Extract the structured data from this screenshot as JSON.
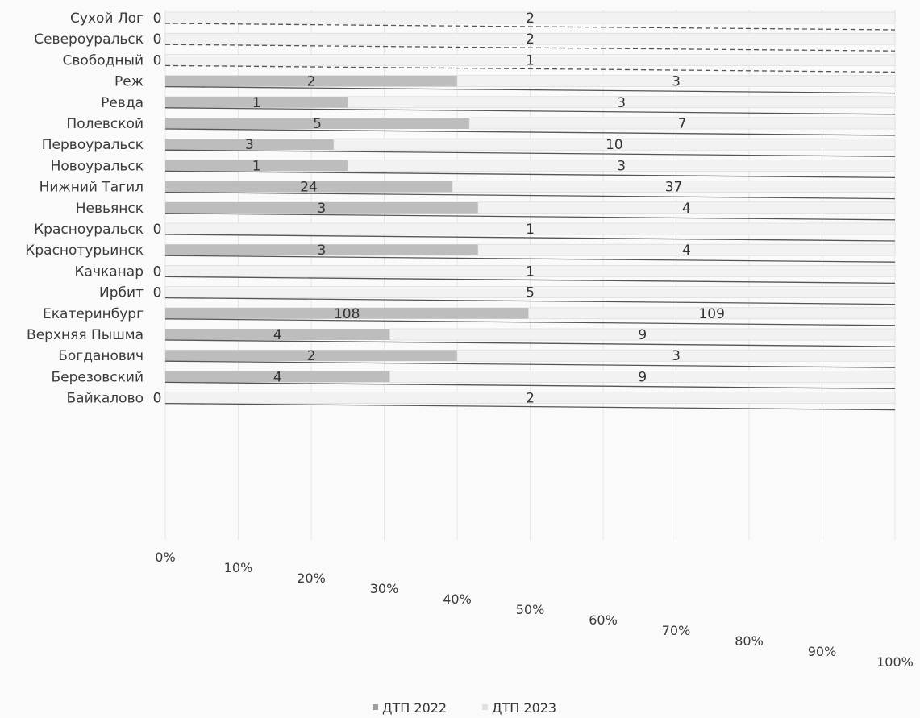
{
  "chart_data": {
    "type": "bar",
    "orientation": "horizontal",
    "stacking": "percent",
    "categories": [
      "Сухой Лог",
      "Североуральск",
      "Свободный",
      "Реж",
      "Ревда",
      "Полевской",
      "Первоуральск",
      "Новоуральск",
      "Нижний Тагил",
      "Невьянск",
      "Красноуральск",
      "Краснотурьинск",
      "Качканар",
      "Ирбит",
      "Екатеринбург",
      "Верхняя Пышма",
      "Богданович",
      "Березовский",
      "Байкалово"
    ],
    "series": [
      {
        "name": "ДТП 2022",
        "values": [
          0,
          0,
          0,
          2,
          1,
          5,
          3,
          1,
          24,
          3,
          0,
          3,
          0,
          0,
          108,
          4,
          2,
          4,
          0
        ],
        "color": "#bdbdbd"
      },
      {
        "name": "ДТП 2023",
        "values": [
          2,
          2,
          1,
          3,
          3,
          7,
          10,
          3,
          37,
          4,
          1,
          4,
          1,
          5,
          109,
          9,
          3,
          9,
          2
        ],
        "color": "#f2f2f2"
      }
    ],
    "x_ticks": [
      "0%",
      "10%",
      "20%",
      "30%",
      "40%",
      "50%",
      "60%",
      "70%",
      "80%",
      "90%",
      "100%"
    ],
    "xlim": [
      0,
      100
    ],
    "legend": {
      "position": "bottom",
      "entries": [
        "ДТП 2022",
        "ДТП 2023"
      ]
    },
    "grid": true
  }
}
